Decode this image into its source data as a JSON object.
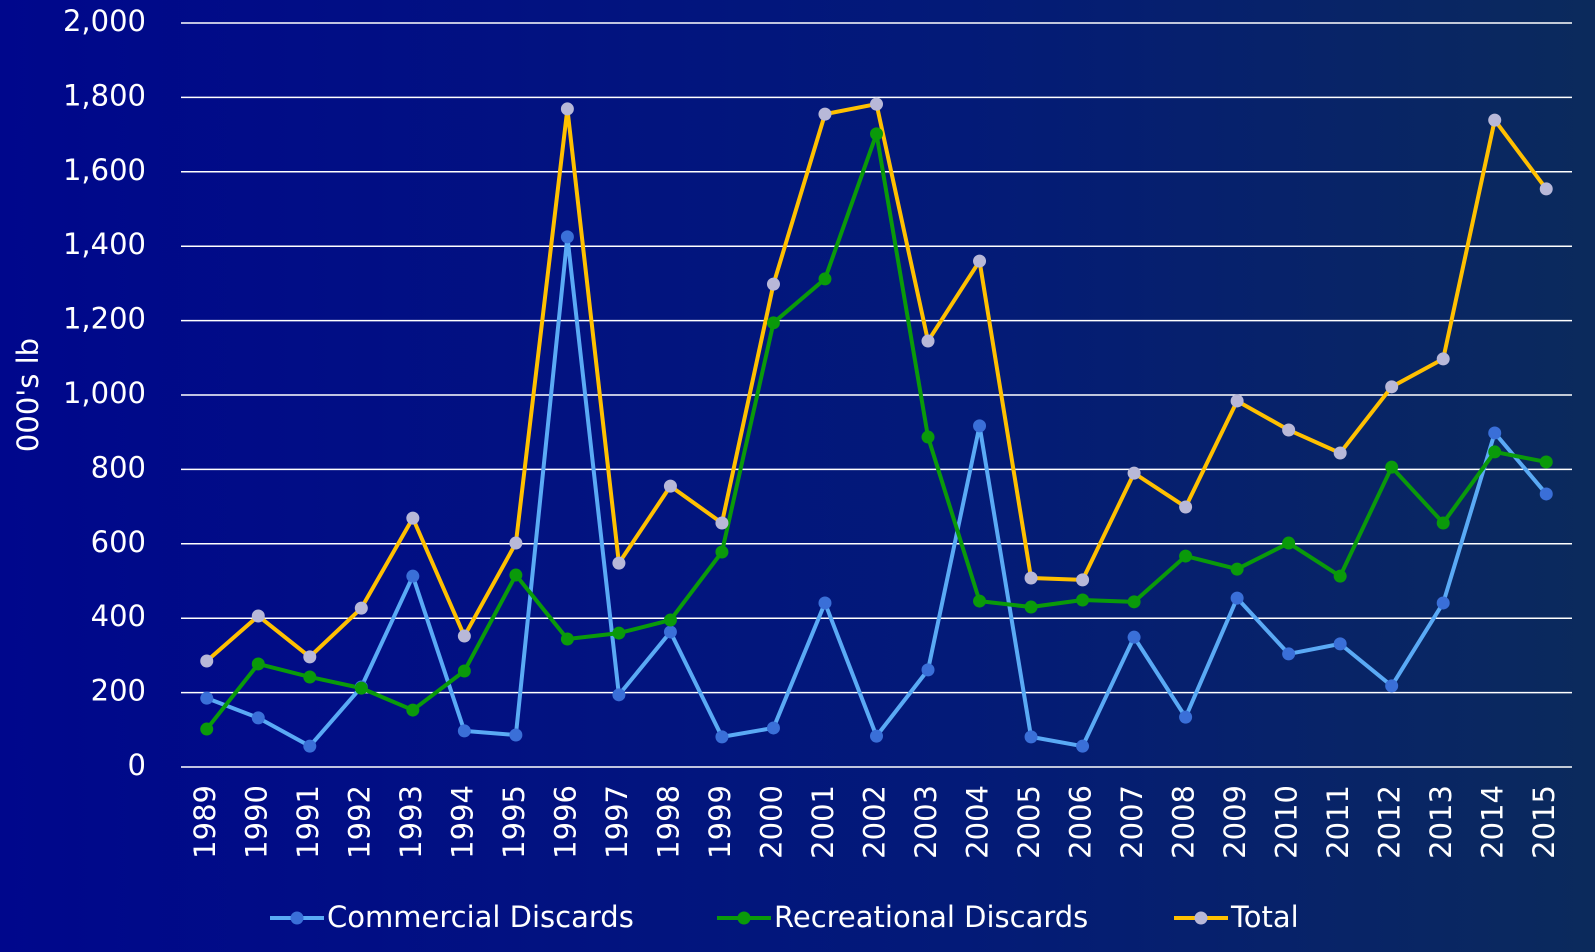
{
  "chart_data": {
    "type": "line",
    "y_label": "000's lb",
    "categories": [
      "1989",
      "1990",
      "1991",
      "1992",
      "1993",
      "1994",
      "1995",
      "1996",
      "1997",
      "1998",
      "1999",
      "2000",
      "2001",
      "2002",
      "2003",
      "2004",
      "2005",
      "2006",
      "2007",
      "2008",
      "2009",
      "2010",
      "2011",
      "2012",
      "2013",
      "2014",
      "2015"
    ],
    "series": [
      {
        "name": "Commercial Discards",
        "color": "#5aaaf5",
        "marker_color": "#3a6fd8",
        "values": [
          185,
          132,
          56,
          215,
          513,
          97,
          86,
          1425,
          194,
          363,
          81,
          105,
          441,
          83,
          261,
          917,
          81,
          56,
          349,
          134,
          454,
          304,
          331,
          218,
          441,
          898,
          734
        ]
      },
      {
        "name": "Recreational Discards",
        "color": "#0a9a0a",
        "marker_color": "#0a9a0a",
        "values": [
          102,
          277,
          242,
          212,
          153,
          258,
          516,
          344,
          360,
          395,
          578,
          1194,
          1312,
          1702,
          887,
          446,
          430,
          449,
          444,
          567,
          532,
          602,
          513,
          806,
          656,
          847,
          820
        ]
      },
      {
        "name": "Total",
        "color": "#ffc000",
        "marker_color": "#b8b8d8",
        "values": [
          285,
          406,
          296,
          427,
          669,
          352,
          602,
          1769,
          548,
          755,
          656,
          1298,
          1755,
          1782,
          1145,
          1360,
          508,
          503,
          790,
          699,
          984,
          906,
          844,
          1022,
          1097,
          1739,
          1554
        ]
      }
    ],
    "ylim": [
      0,
      2000
    ],
    "yticks": [
      0,
      200,
      400,
      600,
      800,
      {
        "value": 1000,
        "label": "1,000"
      },
      {
        "value": 1200,
        "label": "1,200"
      },
      {
        "value": 1400,
        "label": "1,400"
      },
      {
        "value": 1600,
        "label": "1,600"
      },
      {
        "value": 1800,
        "label": "1,800"
      },
      {
        "value": 2000,
        "label": "2,000"
      }
    ],
    "grid": true,
    "legend": "bottom"
  }
}
